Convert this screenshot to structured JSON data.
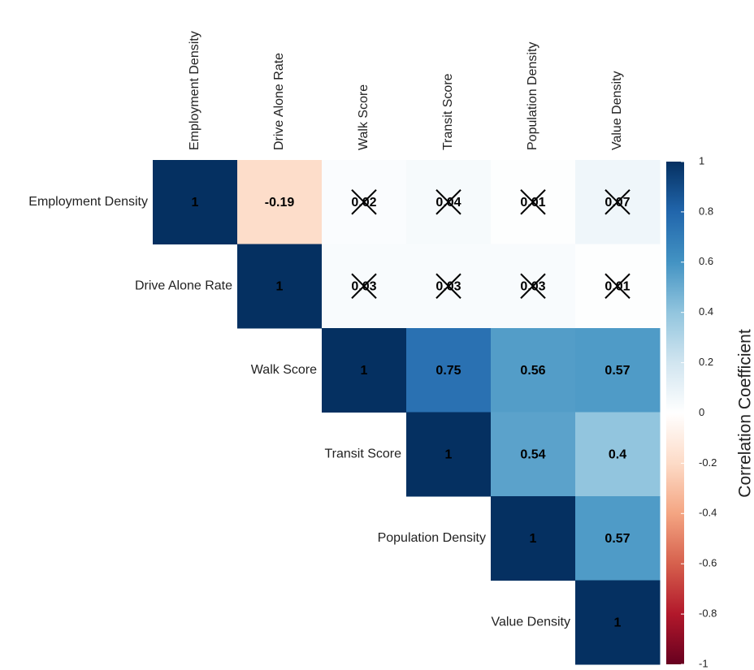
{
  "chart_data": {
    "type": "heatmap",
    "variables": [
      "Employment Density",
      "Drive Alone Rate",
      "Walk Score",
      "Transit Score",
      "Population Density",
      "Value Density"
    ],
    "matrix": [
      [
        1,
        -0.19,
        0.02,
        0.04,
        0.01,
        0.07
      ],
      [
        null,
        1,
        0.03,
        0.03,
        0.03,
        0.01
      ],
      [
        null,
        null,
        1,
        0.75,
        0.56,
        0.57
      ],
      [
        null,
        null,
        null,
        1,
        0.54,
        0.4
      ],
      [
        null,
        null,
        null,
        null,
        1,
        0.57
      ],
      [
        null,
        null,
        null,
        null,
        null,
        1
      ]
    ],
    "crossed": [
      [
        0,
        2
      ],
      [
        0,
        3
      ],
      [
        0,
        4
      ],
      [
        0,
        5
      ],
      [
        1,
        2
      ],
      [
        1,
        3
      ],
      [
        1,
        4
      ],
      [
        1,
        5
      ]
    ],
    "colormap": "RdBu",
    "clim": [
      -1,
      1
    ],
    "cticks": [
      1,
      0.8,
      0.6,
      0.4,
      0.2,
      0,
      -0.2,
      -0.4,
      -0.6,
      -0.8,
      -1
    ],
    "colorbar_title": "Correlation Coefficient"
  }
}
